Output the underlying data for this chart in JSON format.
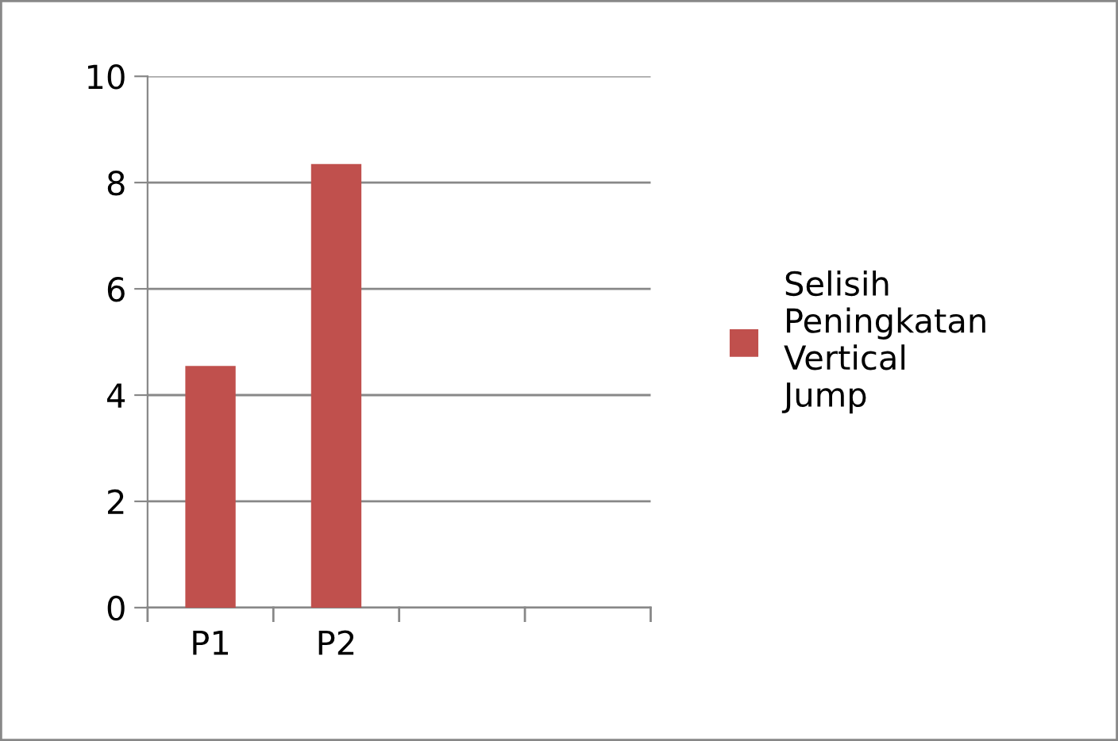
{
  "chart_data": {
    "type": "bar",
    "categories": [
      "P1",
      "P2",
      null,
      null
    ],
    "series": [
      {
        "name": "Selisih Peningkatan Vertical Jump",
        "color": "#c0504d",
        "values": [
          4.55,
          8.35,
          null,
          null
        ]
      }
    ],
    "ylim": [
      0,
      10
    ],
    "yticks": [
      0,
      2,
      4,
      6,
      8,
      10
    ],
    "grid": "y",
    "legend": "right"
  }
}
